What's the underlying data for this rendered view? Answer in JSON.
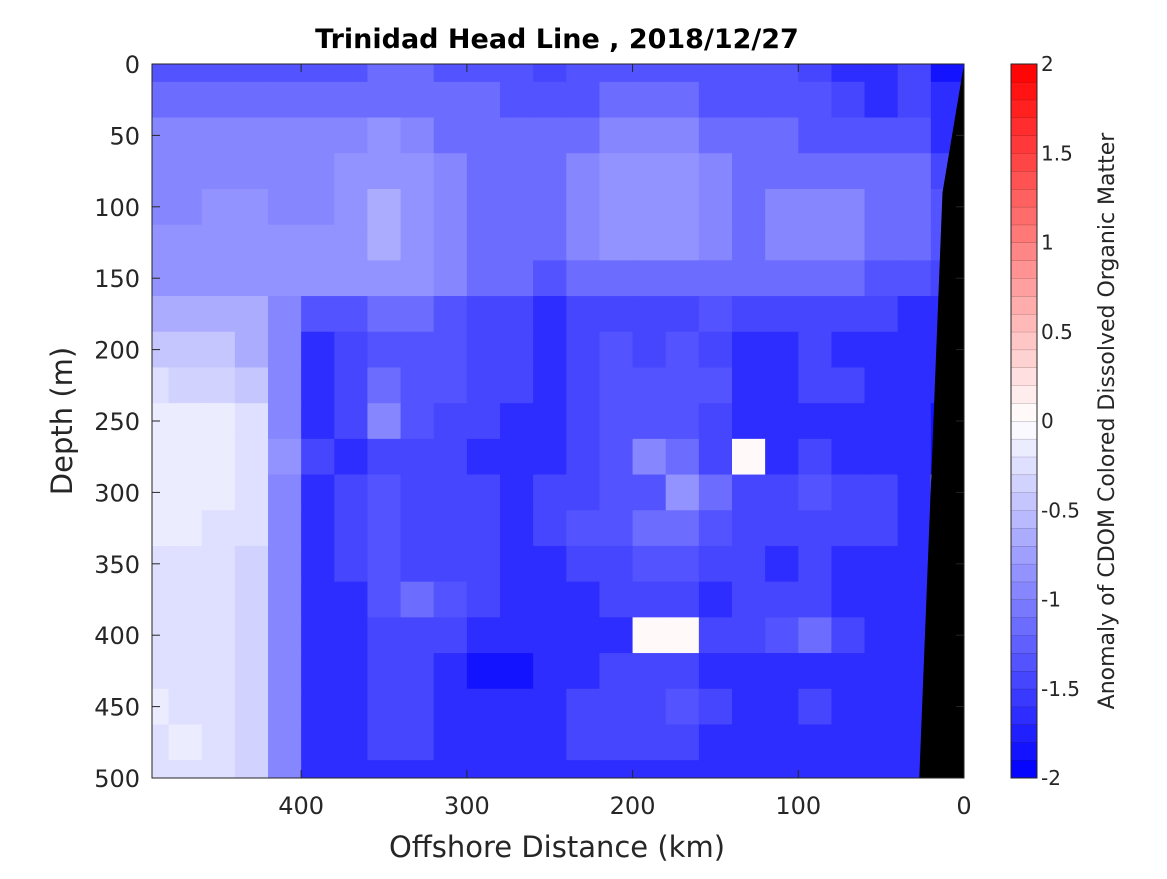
{
  "chart_data": {
    "type": "heatmap",
    "title": "Trinidad Head Line , 2018/12/27",
    "xlabel": "Offshore Distance (km)",
    "ylabel": "Depth (m)",
    "colorbar_label": "Anomaly of CDOM Colored Dissolved Organic Matter",
    "xlim": [
      490,
      0
    ],
    "ylim": [
      0,
      500
    ],
    "x_reversed": true,
    "y_reversed": true,
    "x_ticks": [
      400,
      300,
      200,
      100,
      0
    ],
    "x_tick_labels": [
      "400",
      "300",
      "200",
      "100",
      "0"
    ],
    "y_ticks": [
      0,
      50,
      100,
      150,
      200,
      250,
      300,
      350,
      400,
      450,
      500
    ],
    "y_tick_labels": [
      "0",
      "50",
      "100",
      "150",
      "200",
      "250",
      "300",
      "350",
      "400",
      "450",
      "500"
    ],
    "clim": [
      -2,
      2
    ],
    "colorbar_ticks": [
      2,
      1.5,
      1,
      0.5,
      0,
      -0.5,
      -1,
      -1.5,
      -2
    ],
    "colorbar_tick_labels": [
      "2",
      "1.5",
      "1",
      "0.5",
      "0",
      "-0.5",
      "-1",
      "-1.5",
      "-2"
    ],
    "colorbar_levels": 40,
    "colormap": {
      "low": "#0000ff",
      "mid": "#ffffff",
      "high": "#ff0000"
    },
    "grid": false,
    "x": [
      490,
      470,
      450,
      430,
      410,
      390,
      370,
      350,
      330,
      310,
      290,
      270,
      250,
      230,
      210,
      190,
      170,
      150,
      130,
      110,
      90,
      70,
      50,
      30,
      10
    ],
    "y": [
      0,
      25,
      50,
      75,
      100,
      125,
      150,
      175,
      200,
      225,
      250,
      275,
      300,
      325,
      350,
      375,
      400,
      425,
      450,
      475,
      500
    ],
    "z": [
      [
        -1.3,
        -1.3,
        -1.3,
        -1.3,
        -1.3,
        -1.3,
        -1.3,
        -1.2,
        -1.2,
        -1.3,
        -1.3,
        -1.4,
        -1.5,
        -1.4,
        -1.4,
        -1.3,
        -1.3,
        -1.4,
        -1.4,
        -1.4,
        -1.5,
        -1.6,
        -1.6,
        -1.5,
        -1.8
      ],
      [
        -1.2,
        -1.2,
        -1.2,
        -1.2,
        -1.2,
        -1.2,
        -1.1,
        -1.1,
        -1.1,
        -1.2,
        -1.2,
        -1.3,
        -1.3,
        -1.3,
        -1.2,
        -1.2,
        -1.2,
        -1.3,
        -1.3,
        -1.3,
        -1.4,
        -1.5,
        -1.6,
        -1.5,
        -1.7
      ],
      [
        -1.0,
        -1.0,
        -1.0,
        -1.0,
        -1.0,
        -1.0,
        -1.0,
        -0.9,
        -1.0,
        -1.1,
        -1.1,
        -1.2,
        -1.2,
        -1.1,
        -1.0,
        -1.0,
        -1.0,
        -1.1,
        -1.2,
        -1.2,
        -1.3,
        -1.3,
        -1.3,
        -1.3,
        -1.6
      ],
      [
        -1.0,
        -1.0,
        -1.0,
        -1.0,
        -1.0,
        -1.0,
        -0.9,
        -0.8,
        -0.9,
        -1.0,
        -1.1,
        -1.2,
        -1.2,
        -1.0,
        -0.9,
        -0.9,
        -0.9,
        -1.0,
        -1.1,
        -1.1,
        -1.1,
        -1.1,
        -1.2,
        -1.2,
        -1.5
      ],
      [
        -1.0,
        -1.0,
        -0.9,
        -0.9,
        -1.0,
        -1.0,
        -0.9,
        -0.7,
        -0.8,
        -1.0,
        -1.1,
        -1.2,
        -1.2,
        -1.0,
        -0.9,
        -0.8,
        -0.9,
        -1.0,
        -1.1,
        -1.0,
        -1.0,
        -1.0,
        -1.1,
        -1.2,
        -1.4
      ],
      [
        -0.9,
        -0.9,
        -0.9,
        -0.9,
        -0.9,
        -0.9,
        -0.9,
        -0.7,
        -0.8,
        -1.0,
        -1.1,
        -1.2,
        -1.2,
        -1.0,
        -0.9,
        -0.8,
        -0.9,
        -1.0,
        -1.1,
        -1.0,
        -1.0,
        -1.0,
        -1.1,
        -1.2,
        -1.4
      ],
      [
        -0.8,
        -0.8,
        -0.8,
        -0.8,
        -0.9,
        -0.9,
        -0.9,
        -0.8,
        -0.9,
        -1.0,
        -1.1,
        -1.2,
        -1.3,
        -1.2,
        -1.1,
        -1.1,
        -1.1,
        -1.2,
        -1.2,
        -1.2,
        -1.2,
        -1.2,
        -1.3,
        -1.3,
        -1.5
      ],
      [
        -0.7,
        -0.6,
        -0.6,
        -0.7,
        -1.0,
        -1.4,
        -1.4,
        -1.2,
        -1.2,
        -1.3,
        -1.5,
        -1.5,
        -1.6,
        -1.5,
        -1.5,
        -1.5,
        -1.5,
        -1.4,
        -1.5,
        -1.5,
        -1.5,
        -1.5,
        -1.5,
        -1.6,
        -1.7
      ],
      [
        -0.5,
        -0.5,
        -0.5,
        -0.6,
        -1.0,
        -1.6,
        -1.5,
        -1.3,
        -1.3,
        -1.4,
        -1.5,
        -1.5,
        -1.7,
        -1.5,
        -1.4,
        -1.5,
        -1.4,
        -1.5,
        -1.6,
        -1.6,
        -1.5,
        -1.6,
        -1.6,
        -1.6,
        -1.7
      ],
      [
        -0.3,
        -0.4,
        -0.4,
        -0.5,
        -1.0,
        -1.6,
        -1.5,
        -1.2,
        -1.3,
        -1.4,
        -1.5,
        -1.5,
        -1.7,
        -1.5,
        -1.3,
        -1.4,
        -1.3,
        -1.4,
        -1.6,
        -1.6,
        -1.5,
        -1.5,
        -1.6,
        -1.6,
        -1.7
      ],
      [
        -0.2,
        -0.2,
        -0.2,
        -0.3,
        -1.0,
        -1.6,
        -1.5,
        -1.0,
        -1.4,
        -1.5,
        -1.5,
        -1.6,
        -1.7,
        -1.5,
        -1.4,
        -1.3,
        -1.4,
        -1.5,
        -1.7,
        -1.7,
        -1.6,
        -1.6,
        -1.7,
        -1.7,
        -1.8
      ],
      [
        -0.2,
        -0.1,
        -0.2,
        -0.3,
        -0.9,
        -1.5,
        -1.6,
        -1.5,
        -1.5,
        -1.5,
        -1.6,
        -1.7,
        -1.6,
        -1.5,
        -1.3,
        -1.0,
        -1.2,
        -1.5,
        0.0,
        -1.6,
        -1.5,
        -1.6,
        -1.6,
        -1.7,
        -1.8
      ],
      [
        -0.2,
        -0.2,
        -0.2,
        -0.3,
        -1.0,
        -1.6,
        -1.5,
        -1.4,
        -1.5,
        -1.5,
        -1.5,
        -1.6,
        -1.5,
        -1.5,
        -1.4,
        -1.3,
        -0.9,
        -1.2,
        -1.5,
        -1.5,
        -1.4,
        -1.5,
        -1.5,
        -1.6,
        -0.3
      ],
      [
        -0.2,
        -0.2,
        -0.3,
        -0.3,
        -1.0,
        -1.6,
        -1.5,
        -1.4,
        -1.5,
        -1.5,
        -1.5,
        -1.6,
        -1.5,
        -1.4,
        -1.4,
        -1.2,
        -1.1,
        -1.3,
        -1.5,
        -1.5,
        -1.5,
        -1.5,
        -1.5,
        -1.6,
        -1.7
      ],
      [
        -0.3,
        -0.3,
        -0.3,
        -0.4,
        -1.0,
        -1.7,
        -1.5,
        -1.4,
        -1.5,
        -1.5,
        -1.5,
        -1.6,
        -1.6,
        -1.5,
        -1.5,
        -1.4,
        -1.4,
        -1.5,
        -1.5,
        -1.6,
        -1.5,
        -1.6,
        -1.6,
        -1.6,
        -1.7
      ],
      [
        -0.3,
        -0.3,
        -0.3,
        -0.4,
        -1.0,
        -1.6,
        -1.6,
        -1.4,
        -1.2,
        -1.4,
        -1.5,
        -1.6,
        -1.7,
        -1.6,
        -1.5,
        -1.5,
        -1.5,
        -1.6,
        -1.5,
        -1.5,
        -1.5,
        -1.6,
        -1.6,
        -1.6,
        -1.7
      ],
      [
        -0.3,
        -0.3,
        -0.3,
        -0.4,
        -1.0,
        -1.6,
        -1.6,
        -1.5,
        -1.5,
        -1.5,
        -1.6,
        -1.7,
        -1.7,
        -1.7,
        -1.6,
        0.0,
        0.0,
        -1.5,
        -1.5,
        -1.4,
        -1.2,
        -1.5,
        -1.6,
        -1.6,
        -1.7
      ],
      [
        -0.3,
        -0.3,
        -0.3,
        -0.4,
        -1.0,
        -1.6,
        -1.6,
        -1.5,
        -1.5,
        -1.6,
        -1.8,
        -1.8,
        -1.7,
        -1.6,
        -1.5,
        -1.5,
        -1.5,
        -1.6,
        -1.6,
        -1.6,
        -1.6,
        -1.6,
        -1.6,
        -1.6,
        -1.7
      ],
      [
        -0.2,
        -0.3,
        -0.3,
        -0.4,
        -1.0,
        -1.7,
        -1.6,
        -1.5,
        -1.5,
        -1.6,
        -1.6,
        -1.6,
        -1.6,
        -1.5,
        -1.5,
        -1.5,
        -1.4,
        -1.5,
        -1.6,
        -1.6,
        -1.5,
        -1.6,
        -1.6,
        -1.6,
        -1.7
      ],
      [
        -0.3,
        -0.2,
        -0.3,
        -0.4,
        -1.0,
        -1.6,
        -1.6,
        -1.5,
        -1.5,
        -1.6,
        -1.6,
        -1.6,
        -1.6,
        -1.5,
        -1.5,
        -1.5,
        -1.5,
        -1.6,
        -1.6,
        -1.6,
        -1.6,
        -1.7,
        -1.6,
        -1.6,
        -1.7
      ],
      [
        -0.3,
        -0.3,
        -0.3,
        -0.4,
        -1.0,
        -1.7,
        -1.7,
        -1.6,
        -1.6,
        -1.6,
        -1.7,
        -1.7,
        -1.7,
        -1.6,
        -1.6,
        -1.6,
        -1.6,
        -1.7,
        -1.6,
        -1.6,
        -1.6,
        -1.7,
        -1.7,
        -1.7,
        -1.8
      ]
    ],
    "bottom_boundary": {
      "color": "#000000",
      "x": [
        0,
        13,
        27
      ],
      "y": [
        0,
        90,
        500
      ]
    }
  }
}
